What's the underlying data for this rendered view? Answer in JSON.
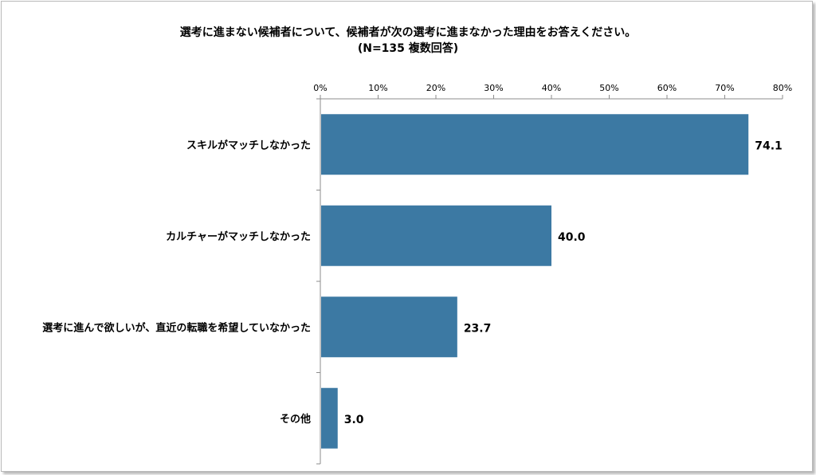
{
  "chart_data": {
    "type": "bar",
    "orientation": "horizontal",
    "title": "選考に進まない候補者について、候補者が次の選考に進まなかった理由をお答えください。",
    "subtitle": "(N=135 複数回答)",
    "categories": [
      "スキルがマッチしなかった",
      "カルチャーがマッチしなかった",
      "選考に進んで欲しいが、直近の転職を希望していなかった",
      "その他"
    ],
    "values": [
      74.1,
      40.0,
      23.7,
      3.0
    ],
    "value_labels": [
      "74.1",
      "40.0",
      "23.7",
      "3.0"
    ],
    "xlim": [
      0,
      80
    ],
    "xticks": [
      0,
      10,
      20,
      30,
      40,
      50,
      60,
      70,
      80
    ],
    "xtick_labels": [
      "0%",
      "10%",
      "20%",
      "30%",
      "40%",
      "50%",
      "60%",
      "70%",
      "80%"
    ],
    "x_axis_position": "top",
    "grid": false,
    "legend": "none",
    "bar_color": "#3c79a3",
    "axis_color": "#8c8c8c"
  }
}
